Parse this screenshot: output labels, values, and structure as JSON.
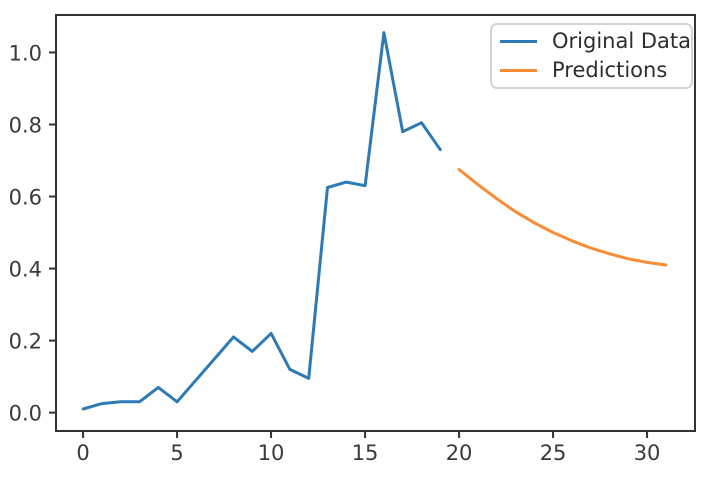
{
  "figure": {
    "background": "#ffffff"
  },
  "chart_data": {
    "type": "line",
    "title": "",
    "xlabel": "",
    "ylabel": "",
    "xlim": [
      -1.44,
      32.55
    ],
    "ylim": [
      -0.051,
      1.104
    ],
    "grid": false,
    "legend_position": "upper right",
    "axis_color": "#333333",
    "tick_label_color": "#3a3a3a",
    "x_ticks": {
      "values": [
        0,
        5,
        10,
        15,
        20,
        25,
        30
      ],
      "labels": [
        "0",
        "5",
        "10",
        "15",
        "20",
        "25",
        "30"
      ]
    },
    "y_ticks": {
      "values": [
        0.0,
        0.2,
        0.4,
        0.6,
        0.8,
        1.0
      ],
      "labels": [
        "0.0",
        "0.2",
        "0.4",
        "0.6",
        "0.8",
        "1.0"
      ]
    },
    "series": [
      {
        "name": "Original Data",
        "color": "#2e7ab5",
        "x": [
          0,
          1,
          2,
          3,
          4,
          5,
          6,
          7,
          8,
          9,
          10,
          11,
          12,
          13,
          14,
          15,
          16,
          17,
          18,
          19
        ],
        "y": [
          0.01,
          0.025,
          0.03,
          0.03,
          0.07,
          0.03,
          0.09,
          0.15,
          0.21,
          0.17,
          0.22,
          0.12,
          0.095,
          0.625,
          0.64,
          0.63,
          1.055,
          0.78,
          0.805,
          0.73
        ]
      },
      {
        "name": "Predictions",
        "color": "#fb8c36",
        "x": [
          20,
          21,
          22,
          23,
          24,
          25,
          26,
          27,
          28,
          29,
          30,
          31
        ],
        "y": [
          0.675,
          0.633,
          0.594,
          0.558,
          0.527,
          0.5,
          0.477,
          0.457,
          0.441,
          0.427,
          0.417,
          0.41
        ]
      }
    ]
  }
}
